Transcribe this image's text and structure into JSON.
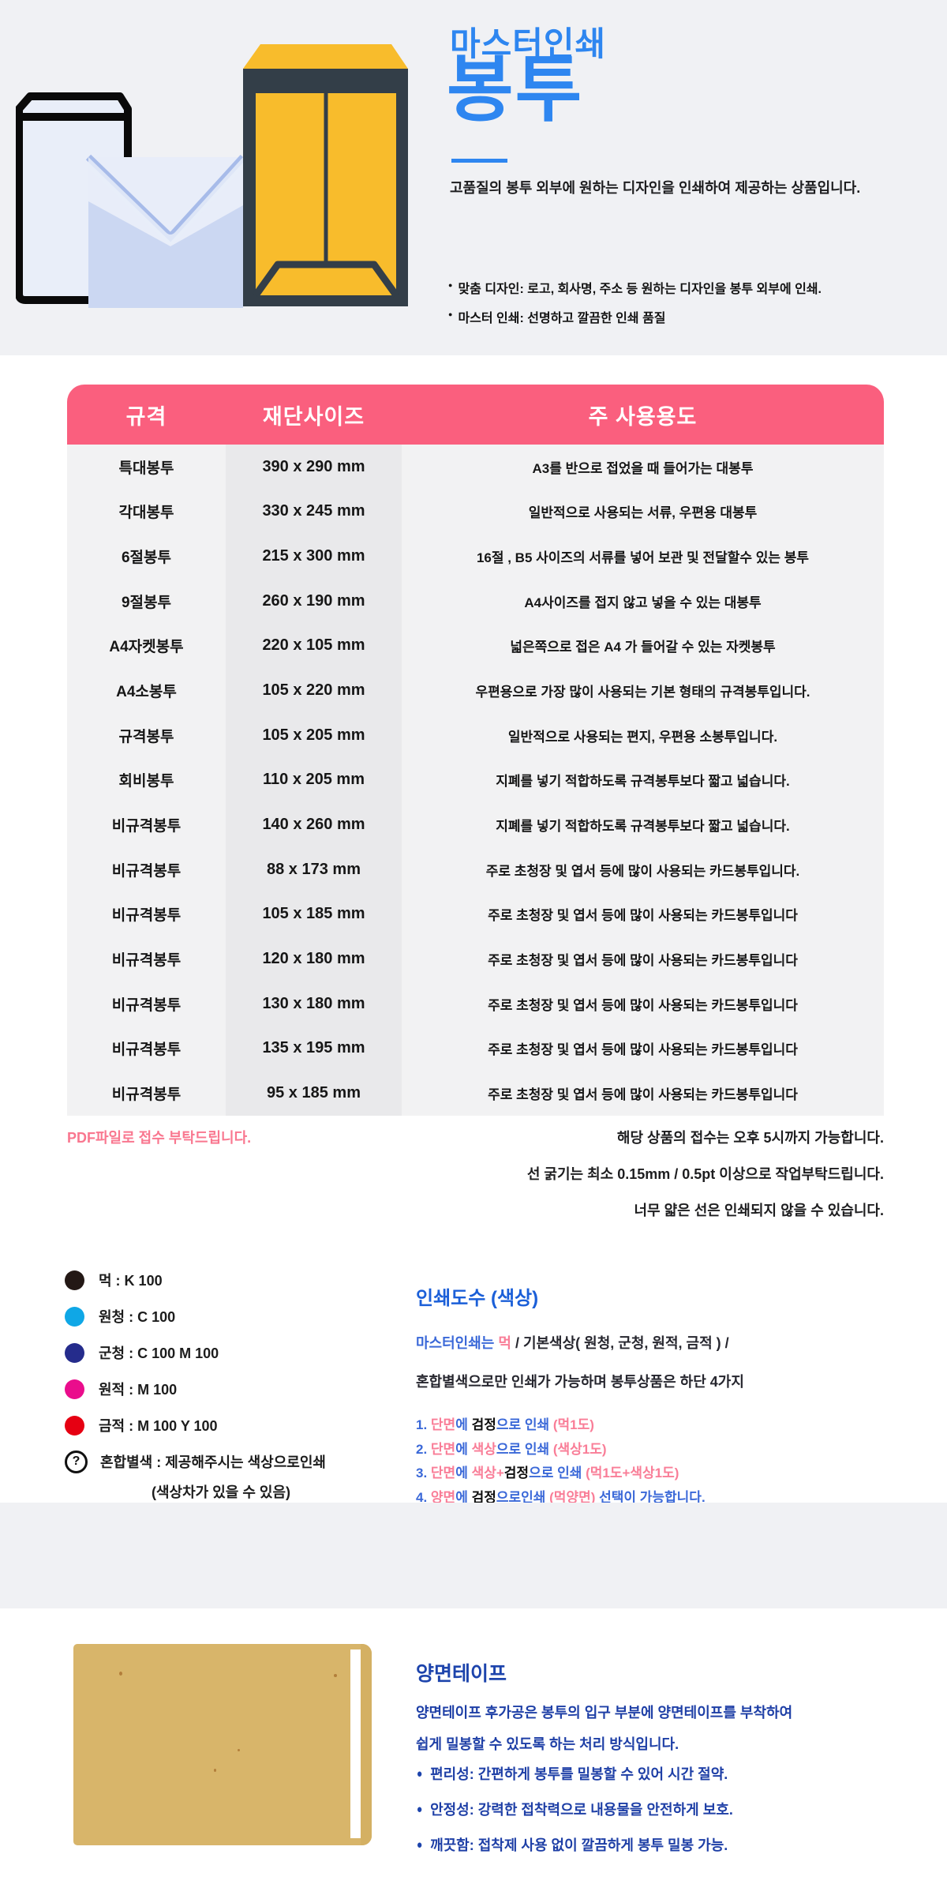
{
  "hero": {
    "brand": "마스터인쇄",
    "title": "봉투",
    "description": "고품질의 봉투 외부에 원하는 디자인을 인쇄하여 제공하는 상품입니다.",
    "bullets": [
      "맞춤 디자인: 로고, 회사명, 주소 등 원하는 디자인을 봉투 외부에 인쇄.",
      "마스터 인쇄: 선명하고 깔끔한 인쇄 품질"
    ],
    "accent_color": "#2E86F0"
  },
  "spec_table": {
    "header_color": "#FA5F7E",
    "headers": [
      "규격",
      "재단사이즈",
      "주 사용용도"
    ],
    "rows": [
      [
        "특대봉투",
        "390 x 290 mm",
        "A3를 반으로 접었을 때 들어가는 대봉투"
      ],
      [
        "각대봉투",
        "330 x 245 mm",
        "일반적으로 사용되는 서류, 우편용 대봉투"
      ],
      [
        "6절봉투",
        "215 x 300 mm",
        "16절 , B5 사이즈의 서류를 넣어 보관 및 전달할수 있는 봉투"
      ],
      [
        "9절봉투",
        "260 x 190 mm",
        "A4사이즈를 접지 않고 넣을 수 있는 대봉투"
      ],
      [
        "A4자켓봉투",
        "220 x 105 mm",
        "넓은쪽으로 접은 A4 가 들어갈 수 있는 자켓봉투"
      ],
      [
        "A4소봉투",
        "105 x 220 mm",
        "우편용으로 가장 많이 사용되는 기본 형태의 규격봉투입니다."
      ],
      [
        "규격봉투",
        "105 x 205 mm",
        "일반적으로 사용되는 편지, 우편용 소봉투입니다."
      ],
      [
        "회비봉투",
        "110 x 205 mm",
        "지폐를 넣기 적합하도록 규격봉투보다 짧고 넓습니다."
      ],
      [
        "비규격봉투",
        "140 x 260 mm",
        "지폐를 넣기 적합하도록 규격봉투보다 짧고 넓습니다."
      ],
      [
        "비규격봉투",
        "88 x 173 mm",
        "주로 초청장 및 엽서 등에 많이 사용되는 카드봉투입니다."
      ],
      [
        "비규격봉투",
        "105 x 185 mm",
        "주로 초청장 및 엽서 등에 많이 사용되는 카드봉투입니다"
      ],
      [
        "비규격봉투",
        "120 x 180 mm",
        "주로 초청장 및 엽서 등에 많이 사용되는 카드봉투입니다"
      ],
      [
        "비규격봉투",
        "130 x 180 mm",
        "주로 초청장 및 엽서 등에 많이 사용되는 카드봉투입니다"
      ],
      [
        "비규격봉투",
        "135 x 195 mm",
        "주로 초청장 및 엽서 등에 많이 사용되는 카드봉투입니다"
      ],
      [
        "비규격봉투",
        "95 x 185 mm",
        "주로 초청장 및 엽서 등에 많이 사용되는 카드봉투입니다"
      ]
    ]
  },
  "notes": {
    "left_note": "PDF파일로 접수 부탁드립니다.",
    "left_note_color": "#F9778F",
    "right_notes": [
      "해당 상품의 접수는 오후 5시까지 가능합니다.",
      "선 굵기는 최소 0.15mm / 0.5pt 이상으로 작업부탁드립니다.",
      "너무 얇은 선은 인쇄되지 않을 수 있습니다."
    ]
  },
  "color_legend": {
    "items": [
      {
        "label": "먹 : K 100",
        "color": "#231815"
      },
      {
        "label": "원청 : C 100",
        "color": "#0FA7E6"
      },
      {
        "label": "군청 : C 100 M 100",
        "color": "#252C8C"
      },
      {
        "label": "원적 : M 100",
        "color": "#EA0D8C"
      },
      {
        "label": "금적 : M 100 Y 100",
        "color": "#E60012"
      }
    ],
    "mixed_symbol": "?",
    "mixed_label": "혼합별색 : 제공해주시는 색상으로인쇄",
    "mixed_sub": "(색상차가 있을 수 있음)"
  },
  "print_info": {
    "heading": "인쇄도수 (색상)",
    "heading_color": "#1B5FD8",
    "intro_line1": [
      {
        "t": "마스터인쇄는 ",
        "c": "blue"
      },
      {
        "t": "먹",
        "c": "pink"
      },
      {
        "t": " / 기본색상( 원청, 군청, 원적, 금적 ) /",
        "c": "dark"
      }
    ],
    "intro_line2": [
      {
        "t": "혼합별색으로만 인쇄가 가능하며 봉투상품은 하단 4가지",
        "c": "dark"
      }
    ],
    "items": [
      [
        {
          "t": "1. ",
          "c": "blue"
        },
        {
          "t": "단면",
          "c": "pink"
        },
        {
          "t": "에 ",
          "c": "blue"
        },
        {
          "t": " 검정",
          "c": "black"
        },
        {
          "t": "으로 인쇄 ",
          "c": "blue"
        },
        {
          "t": "(먹1도)",
          "c": "pink"
        }
      ],
      [
        {
          "t": "2. ",
          "c": "blue"
        },
        {
          "t": "단면",
          "c": "pink"
        },
        {
          "t": "에 ",
          "c": "blue"
        },
        {
          "t": " 색상",
          "c": "pink"
        },
        {
          "t": "으로 인쇄 ",
          "c": "blue"
        },
        {
          "t": "(색상1도)",
          "c": "pink"
        }
      ],
      [
        {
          "t": "3. ",
          "c": "blue"
        },
        {
          "t": "단면",
          "c": "pink"
        },
        {
          "t": "에 ",
          "c": "blue"
        },
        {
          "t": " 색상+",
          "c": "pink"
        },
        {
          "t": "검정",
          "c": "black"
        },
        {
          "t": "으로 인쇄 ",
          "c": "blue"
        },
        {
          "t": "(먹1도+색상1도)",
          "c": "pink"
        }
      ],
      [
        {
          "t": "4. ",
          "c": "blue"
        },
        {
          "t": "양면",
          "c": "pink"
        },
        {
          "t": "에 ",
          "c": "blue"
        },
        {
          "t": " 검정",
          "c": "black"
        },
        {
          "t": "으로인쇄 ",
          "c": "blue"
        },
        {
          "t": "(먹양면) ",
          "c": "pink"
        },
        {
          "t": "선택이 가능합니다.",
          "c": "blue"
        }
      ]
    ]
  },
  "tape_section": {
    "heading": "양면테이프",
    "heading_color": "#1D44AC",
    "paragraph_line1": "양면테이프 후가공은 봉투의 입구 부분에 양면테이프를 부착하여",
    "paragraph_line2": "쉽게 밀봉할 수 있도록 하는 처리 방식입니다.",
    "bullets": [
      "편리성: 간편하게 봉투를 밀봉할 수 있어 시간 절약.",
      "안정성: 강력한 접착력으로 내용물을 안전하게 보호.",
      "깨끗함: 접착제 사용 없이 깔끔하게 봉투 밀봉 가능."
    ]
  }
}
